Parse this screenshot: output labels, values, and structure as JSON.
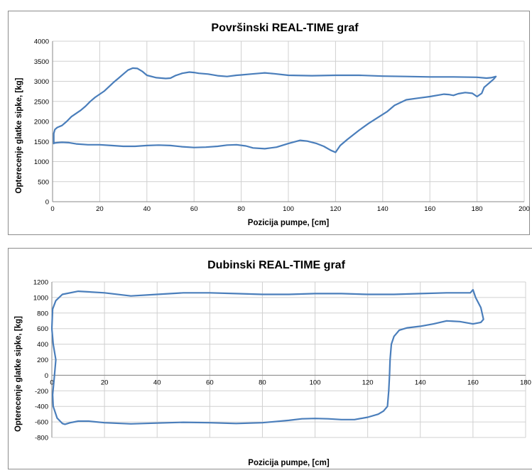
{
  "chart_data": [
    {
      "type": "line",
      "title": "Površinski REAL-TIME graf",
      "xlabel": "Pozicija pumpe, [cm]",
      "ylabel": "Opterecenje glatke sipke, [kg]",
      "xlim": [
        0,
        200
      ],
      "ylim": [
        0,
        4000
      ],
      "x_ticks": [
        0,
        20,
        40,
        60,
        80,
        100,
        120,
        140,
        160,
        180,
        200
      ],
      "y_ticks": [
        0,
        500,
        1000,
        1500,
        2000,
        2500,
        3000,
        3500,
        4000
      ],
      "grid": true,
      "color": "#4a7ebb",
      "series": [
        {
          "x": [
            0.5,
            0.5,
            1,
            2,
            4,
            6,
            8,
            10,
            12,
            14,
            16,
            18,
            20,
            22,
            24,
            26,
            28,
            30,
            32,
            34,
            36,
            38,
            40,
            44,
            48,
            50,
            52,
            55,
            58,
            60,
            62,
            66,
            70,
            74,
            78,
            80,
            84,
            88,
            90,
            94,
            100,
            110,
            120,
            130,
            140,
            150,
            160,
            170,
            180,
            184,
            186,
            188,
            187,
            186,
            184,
            183,
            182,
            180,
            178,
            175,
            172,
            170,
            168,
            166,
            164,
            160,
            155,
            150,
            145,
            142,
            138,
            134,
            130,
            125,
            122,
            120,
            118,
            115,
            112,
            108,
            105,
            100,
            95,
            90,
            85,
            82,
            78,
            74,
            70,
            65,
            60,
            55,
            50,
            45,
            40,
            35,
            30,
            25,
            20,
            15,
            10,
            7,
            4,
            2,
            0.5,
            0.5
          ],
          "y": [
            1450,
            1700,
            1800,
            1850,
            1900,
            2000,
            2120,
            2200,
            2280,
            2380,
            2500,
            2600,
            2680,
            2760,
            2870,
            2980,
            3080,
            3180,
            3280,
            3330,
            3320,
            3250,
            3150,
            3090,
            3070,
            3080,
            3140,
            3200,
            3230,
            3220,
            3200,
            3180,
            3140,
            3120,
            3150,
            3160,
            3180,
            3200,
            3210,
            3190,
            3150,
            3140,
            3150,
            3150,
            3130,
            3120,
            3110,
            3110,
            3100,
            3080,
            3090,
            3120,
            3050,
            3000,
            2900,
            2850,
            2700,
            2620,
            2700,
            2720,
            2690,
            2650,
            2670,
            2680,
            2660,
            2620,
            2580,
            2540,
            2400,
            2250,
            2100,
            1950,
            1780,
            1550,
            1400,
            1230,
            1280,
            1380,
            1450,
            1510,
            1530,
            1450,
            1360,
            1320,
            1340,
            1390,
            1420,
            1410,
            1380,
            1360,
            1350,
            1370,
            1400,
            1410,
            1400,
            1380,
            1380,
            1400,
            1420,
            1420,
            1440,
            1470,
            1480,
            1470,
            1460,
            1450
          ]
        }
      ]
    },
    {
      "type": "line",
      "title": "Dubinski REAL-TIME graf",
      "xlabel": "Pozicija pumpe, [cm]",
      "ylabel": "Opterecenje glatke sipke, [kg]",
      "xlim": [
        0,
        180
      ],
      "ylim": [
        -800,
        1200
      ],
      "x_ticks": [
        0,
        20,
        40,
        60,
        80,
        100,
        120,
        140,
        160,
        180
      ],
      "y_ticks": [
        -800,
        -600,
        -400,
        -200,
        0,
        200,
        400,
        600,
        800,
        1000,
        1200
      ],
      "grid": true,
      "color": "#4a7ebb",
      "series": [
        {
          "x": [
            0,
            0.3,
            1.5,
            4,
            10,
            20,
            30,
            40,
            50,
            60,
            70,
            80,
            90,
            100,
            110,
            120,
            130,
            140,
            150,
            159,
            160,
            161,
            163,
            164,
            163,
            160,
            155,
            150,
            145,
            140,
            135,
            132,
            130,
            129,
            128.5,
            128.3,
            128,
            127.5,
            126,
            124,
            120,
            115,
            110,
            105,
            100,
            95,
            90,
            80,
            70,
            60,
            50,
            40,
            30,
            20,
            14,
            10,
            7,
            5,
            4,
            2,
            0.5,
            0.3,
            1,
            1.5,
            0.5,
            0
          ],
          "y": [
            600,
            850,
            960,
            1040,
            1080,
            1060,
            1020,
            1040,
            1060,
            1060,
            1050,
            1040,
            1040,
            1050,
            1050,
            1040,
            1040,
            1050,
            1060,
            1060,
            1100,
            1000,
            870,
            720,
            680,
            660,
            690,
            700,
            660,
            630,
            610,
            580,
            500,
            400,
            200,
            0,
            -200,
            -400,
            -460,
            -500,
            -540,
            -570,
            -570,
            -560,
            -555,
            -560,
            -580,
            -610,
            -620,
            -610,
            -605,
            -615,
            -625,
            -610,
            -590,
            -590,
            -610,
            -630,
            -620,
            -550,
            -400,
            -250,
            0,
            200,
            400,
            600
          ]
        }
      ]
    }
  ]
}
